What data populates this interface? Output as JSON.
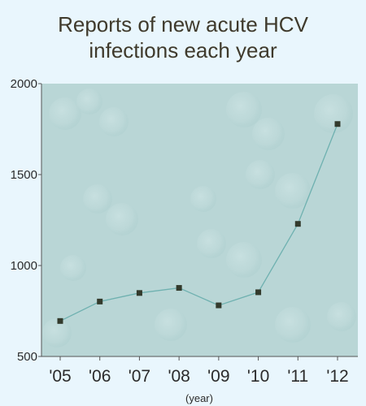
{
  "chart_data": {
    "type": "line",
    "title_lines": [
      "Reports of new acute HCV",
      "infections each year"
    ],
    "xlabel": "(year)",
    "ylabel": "",
    "categories": [
      "'05",
      "'06",
      "'07",
      "'08",
      "'09",
      "'10",
      "'11",
      "'12"
    ],
    "series": [
      {
        "values": [
          695,
          802,
          849,
          877,
          781,
          853,
          1229,
          1778
        ]
      }
    ],
    "ylim": [
      500,
      2000
    ],
    "yticks": [
      500,
      1000,
      1500,
      2000
    ],
    "grid": false,
    "colors": {
      "line": "#6fb1b0",
      "marker": "#333a2c",
      "plot_bg": "#b9d6d6",
      "axis": "#555555",
      "page_bg": "#e9f6fd"
    }
  }
}
